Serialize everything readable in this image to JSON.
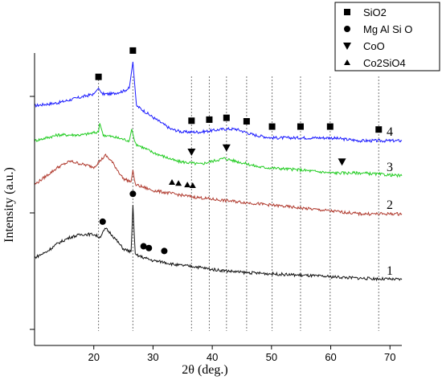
{
  "chart_data": {
    "type": "line",
    "xlabel": "2θ (deg.)",
    "ylabel": "Intensity (a.u.)",
    "xlim": [
      10,
      72
    ],
    "x_ticks": [
      20,
      30,
      40,
      50,
      60,
      70
    ],
    "y_ticks_labeled": false,
    "grid": false,
    "legend_position": "top-right",
    "legend": [
      {
        "label": "SiO2",
        "marker": "square"
      },
      {
        "label": "Mg Al Si O",
        "marker": "circle"
      },
      {
        "label": "CoO",
        "marker": "triangle-down"
      },
      {
        "label": "Co2SiO4",
        "marker": "triangle-up"
      }
    ],
    "reference_lines_2theta": [
      20.8,
      26.6,
      36.5,
      39.5,
      42.4,
      45.8,
      50.1,
      54.9,
      59.9,
      68.1
    ],
    "series": [
      {
        "name": "4",
        "color": "#1a1aff",
        "points": [
          [
            10,
            0.82
          ],
          [
            14,
            0.83
          ],
          [
            18,
            0.85
          ],
          [
            20,
            0.86
          ],
          [
            20.8,
            0.88
          ],
          [
            21.4,
            0.86
          ],
          [
            23,
            0.86
          ],
          [
            25,
            0.87
          ],
          [
            26,
            0.88
          ],
          [
            26.6,
            0.97
          ],
          [
            27.2,
            0.82
          ],
          [
            30,
            0.78
          ],
          [
            33,
            0.74
          ],
          [
            35,
            0.73
          ],
          [
            38,
            0.73
          ],
          [
            42,
            0.74
          ],
          [
            44,
            0.74
          ],
          [
            47,
            0.72
          ],
          [
            50,
            0.71
          ],
          [
            55,
            0.71
          ],
          [
            60,
            0.71
          ],
          [
            65,
            0.7
          ],
          [
            68,
            0.7
          ],
          [
            72,
            0.7
          ]
        ],
        "markers": {
          "symbol": "square",
          "x": [
            20.8,
            26.6,
            36.5,
            39.5,
            42.4,
            45.8,
            50.1,
            54.9,
            59.9,
            68.1
          ]
        }
      },
      {
        "name": "3",
        "color": "#22cc22",
        "points": [
          [
            10,
            0.7
          ],
          [
            14,
            0.72
          ],
          [
            18,
            0.72
          ],
          [
            20.8,
            0.73
          ],
          [
            21,
            0.76
          ],
          [
            21.6,
            0.72
          ],
          [
            24,
            0.71
          ],
          [
            26,
            0.7
          ],
          [
            26.4,
            0.74
          ],
          [
            27,
            0.69
          ],
          [
            30,
            0.66
          ],
          [
            34,
            0.63
          ],
          [
            38,
            0.62
          ],
          [
            42,
            0.64
          ],
          [
            44,
            0.63
          ],
          [
            48,
            0.61
          ],
          [
            55,
            0.6
          ],
          [
            60,
            0.59
          ],
          [
            65,
            0.59
          ],
          [
            72,
            0.58
          ]
        ],
        "markers": {
          "symbol": "triangle-down",
          "x": [
            36.5,
            42.4,
            61.9
          ]
        }
      },
      {
        "name": "2",
        "color": "#b03a2e",
        "points": [
          [
            10,
            0.55
          ],
          [
            12,
            0.58
          ],
          [
            14,
            0.61
          ],
          [
            16,
            0.63
          ],
          [
            18,
            0.62
          ],
          [
            20,
            0.61
          ],
          [
            21,
            0.63
          ],
          [
            22,
            0.65
          ],
          [
            23,
            0.63
          ],
          [
            25,
            0.57
          ],
          [
            26.3,
            0.56
          ],
          [
            26.6,
            0.6
          ],
          [
            27,
            0.55
          ],
          [
            30,
            0.53
          ],
          [
            33,
            0.52
          ],
          [
            36,
            0.51
          ],
          [
            40,
            0.5
          ],
          [
            45,
            0.49
          ],
          [
            50,
            0.48
          ],
          [
            55,
            0.47
          ],
          [
            60,
            0.46
          ],
          [
            65,
            0.45
          ],
          [
            72,
            0.45
          ]
        ],
        "markers": {
          "symbol": "triangle-up",
          "x": [
            33.2,
            34.3,
            35.8,
            36.7
          ]
        }
      },
      {
        "name": "1",
        "color": "#111111",
        "points": [
          [
            10,
            0.3
          ],
          [
            12,
            0.32
          ],
          [
            14,
            0.35
          ],
          [
            16,
            0.37
          ],
          [
            18,
            0.38
          ],
          [
            20,
            0.38
          ],
          [
            21,
            0.37
          ],
          [
            22,
            0.4
          ],
          [
            23,
            0.38
          ],
          [
            25,
            0.33
          ],
          [
            26.3,
            0.32
          ],
          [
            26.6,
            0.48
          ],
          [
            27,
            0.31
          ],
          [
            28.5,
            0.3
          ],
          [
            30,
            0.29
          ],
          [
            31.8,
            0.285
          ],
          [
            34,
            0.275
          ],
          [
            37,
            0.27
          ],
          [
            40,
            0.26
          ],
          [
            45,
            0.25
          ],
          [
            50,
            0.245
          ],
          [
            55,
            0.24
          ],
          [
            60,
            0.235
          ],
          [
            65,
            0.23
          ],
          [
            72,
            0.225
          ]
        ],
        "markers": {
          "symbol": "circle",
          "x": [
            21.5,
            26.6,
            28.4,
            29.3,
            31.9
          ]
        }
      }
    ]
  }
}
